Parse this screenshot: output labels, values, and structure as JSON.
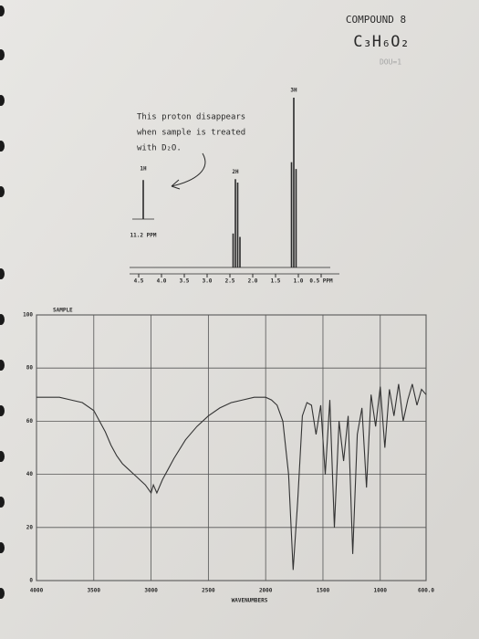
{
  "header": {
    "title": "COMPOUND 8",
    "formula": "C₃H₆O₂",
    "note": "DOU=1"
  },
  "annotation": [
    "This proton disappears",
    "when sample is treated",
    "with D₂O."
  ],
  "chart_data": [
    {
      "type": "stem",
      "xlim": [
        4.7,
        0.3
      ],
      "ylim": [
        0,
        100
      ],
      "color": "#2a2a2a",
      "xticks": [
        4.5,
        {
          "value": 4,
          "label": "4.0"
        },
        3.5,
        {
          "value": 3,
          "label": "3.0"
        },
        2.5,
        {
          "value": 2,
          "label": "2.0"
        },
        1.5,
        {
          "value": 1,
          "label": "1.0"
        },
        {
          "value": 0.5,
          "label": "0.5 PPM"
        }
      ],
      "series": [
        {
          "name": "2H",
          "x": [
            2.43,
            2.38,
            2.33,
            2.28
          ],
          "values": [
            20,
            52,
            50,
            18
          ]
        },
        {
          "name": "3H",
          "x": [
            1.15,
            1.1,
            1.05
          ],
          "values": [
            62,
            100,
            58
          ]
        }
      ],
      "inset": {
        "x": {
          "value": 11.2,
          "label": "11.2 PPM"
        },
        "label": "1H",
        "value": 23
      }
    },
    {
      "type": "line",
      "title": "SAMPLE",
      "xlabel": "WAVENUMBERS",
      "xlim": [
        4000,
        600
      ],
      "ylim": [
        0,
        100
      ],
      "xticks": [
        4000,
        3500,
        3000,
        2500,
        2000,
        1500,
        1000,
        {
          "value": 600,
          "label": "600.0"
        }
      ],
      "yticks": [
        0,
        20,
        40,
        60,
        80,
        100
      ],
      "grid": true,
      "color": "#333333",
      "x": [
        4000,
        3900,
        3800,
        3700,
        3600,
        3500,
        3450,
        3400,
        3350,
        3300,
        3250,
        3200,
        3150,
        3100,
        3050,
        3000,
        2980,
        2950,
        2900,
        2850,
        2800,
        2700,
        2600,
        2500,
        2400,
        2300,
        2200,
        2100,
        2000,
        1950,
        1900,
        1850,
        1800,
        1760,
        1720,
        1680,
        1640,
        1600,
        1560,
        1520,
        1480,
        1440,
        1400,
        1360,
        1320,
        1280,
        1240,
        1200,
        1160,
        1120,
        1080,
        1040,
        1000,
        960,
        920,
        880,
        840,
        800,
        760,
        720,
        680,
        640,
        600
      ],
      "values": [
        69,
        69,
        69,
        68,
        67,
        64,
        60,
        56,
        51,
        47,
        44,
        42,
        40,
        38,
        36,
        33,
        36,
        33,
        38,
        42,
        46,
        53,
        58,
        62,
        65,
        67,
        68,
        69,
        69,
        68,
        66,
        60,
        40,
        4,
        30,
        62,
        67,
        66,
        55,
        66,
        40,
        68,
        20,
        60,
        45,
        62,
        10,
        55,
        65,
        35,
        70,
        58,
        73,
        50,
        72,
        62,
        74,
        60,
        68,
        74,
        66,
        72,
        70
      ]
    }
  ]
}
